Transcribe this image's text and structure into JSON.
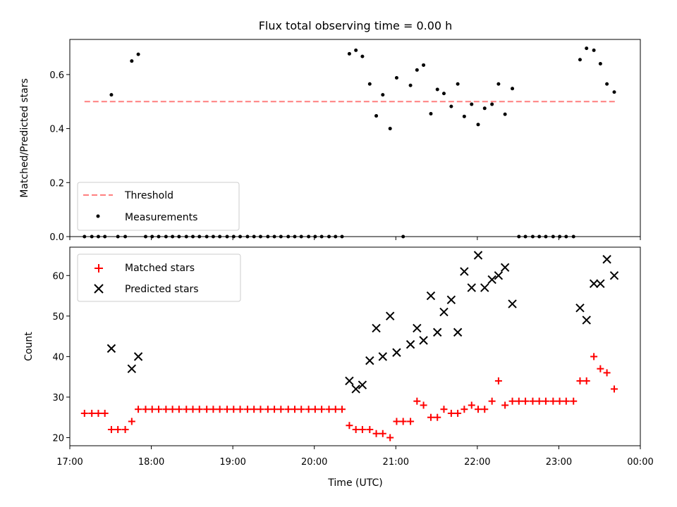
{
  "chart_data": [
    {
      "type": "scatter",
      "title": "Flux total observing time = 0.00 h",
      "xlabel": "",
      "ylabel": "Matched/Predicted stars",
      "xlim": [
        17.0,
        24.0
      ],
      "ylim": [
        0.0,
        0.73
      ],
      "yticks": [
        0.0,
        0.2,
        0.4,
        0.6
      ],
      "ytick_labels": [
        "0.0",
        "0.2",
        "0.4",
        "0.6"
      ],
      "legend": {
        "position": "lower-left",
        "entries": [
          "Threshold",
          "Measurements"
        ]
      },
      "threshold": {
        "name": "Threshold",
        "value": 0.5,
        "x_range": [
          17.18,
          23.7
        ],
        "color": "#ff7f7f"
      },
      "measurements": {
        "name": "Measurements",
        "color": "#000000",
        "x": [
          17.18,
          17.27,
          17.35,
          17.43,
          17.51,
          17.59,
          17.68,
          17.76,
          17.84,
          17.93,
          18.01,
          18.09,
          18.18,
          18.26,
          18.34,
          18.43,
          18.51,
          18.59,
          18.68,
          18.76,
          18.84,
          18.93,
          19.01,
          19.09,
          19.18,
          19.26,
          19.34,
          19.43,
          19.51,
          19.59,
          19.68,
          19.76,
          19.84,
          19.93,
          20.01,
          20.09,
          20.18,
          20.26,
          20.34,
          20.43,
          20.51,
          20.59,
          20.68,
          20.76,
          20.84,
          20.93,
          21.01,
          21.09,
          21.18,
          21.26,
          21.34,
          21.43,
          21.51,
          21.59,
          21.68,
          21.76,
          21.84,
          21.93,
          22.01,
          22.09,
          22.18,
          22.26,
          22.34,
          22.43,
          22.51,
          22.59,
          22.68,
          22.76,
          22.84,
          22.93,
          23.01,
          23.09,
          23.18,
          23.26,
          23.34,
          23.43,
          23.51,
          23.59,
          23.68
        ],
        "y": [
          0,
          0,
          0,
          0,
          0.525,
          0,
          0,
          0.65,
          0.675,
          0,
          0,
          0,
          0,
          0,
          0,
          0,
          0,
          0,
          0,
          0,
          0,
          0,
          0,
          0,
          0,
          0,
          0,
          0,
          0,
          0,
          0,
          0,
          0,
          0,
          0,
          0,
          0,
          0,
          0,
          0.677,
          0.69,
          0.667,
          0.565,
          0.447,
          0.525,
          0.4,
          0.588,
          0,
          0.56,
          0.617,
          0.635,
          0.455,
          0.545,
          0.53,
          0.482,
          0.565,
          0.445,
          0.49,
          0.415,
          0.475,
          0.49,
          0.565,
          0.453,
          0.548,
          0,
          0,
          0,
          0,
          0,
          0,
          0,
          0,
          0,
          0.655,
          0.697,
          0.69,
          0.64,
          0.565,
          0.535
        ]
      }
    },
    {
      "type": "scatter",
      "title": "",
      "xlabel": "Time (UTC)",
      "ylabel": "Count",
      "xlim": [
        17.0,
        24.0
      ],
      "ylim": [
        18.0,
        67.0
      ],
      "xticks": [
        17,
        18,
        19,
        20,
        21,
        22,
        23,
        24
      ],
      "xtick_labels": [
        "17:00",
        "18:00",
        "19:00",
        "20:00",
        "21:00",
        "22:00",
        "23:00",
        "00:00"
      ],
      "yticks": [
        20,
        30,
        40,
        50,
        60
      ],
      "ytick_labels": [
        "20",
        "30",
        "40",
        "50",
        "60"
      ],
      "legend": {
        "position": "top-left",
        "entries": [
          "Matched stars",
          "Predicted stars"
        ]
      },
      "matched": {
        "name": "Matched stars",
        "color": "#ff0000",
        "x": [
          17.18,
          17.27,
          17.35,
          17.43,
          17.51,
          17.59,
          17.68,
          17.76,
          17.84,
          17.93,
          18.01,
          18.09,
          18.18,
          18.26,
          18.34,
          18.43,
          18.51,
          18.59,
          18.68,
          18.76,
          18.84,
          18.93,
          19.01,
          19.09,
          19.18,
          19.26,
          19.34,
          19.43,
          19.51,
          19.59,
          19.68,
          19.76,
          19.84,
          19.93,
          20.01,
          20.09,
          20.18,
          20.26,
          20.34,
          20.43,
          20.51,
          20.59,
          20.68,
          20.76,
          20.84,
          20.93,
          21.01,
          21.09,
          21.18,
          21.26,
          21.34,
          21.43,
          21.51,
          21.59,
          21.68,
          21.76,
          21.84,
          21.93,
          22.01,
          22.09,
          22.18,
          22.26,
          22.34,
          22.43,
          22.51,
          22.59,
          22.68,
          22.76,
          22.84,
          22.93,
          23.01,
          23.09,
          23.18,
          23.26,
          23.34,
          23.43,
          23.51,
          23.59,
          23.68
        ],
        "y": [
          26,
          26,
          26,
          26,
          22,
          22,
          22,
          24,
          27,
          27,
          27,
          27,
          27,
          27,
          27,
          27,
          27,
          27,
          27,
          27,
          27,
          27,
          27,
          27,
          27,
          27,
          27,
          27,
          27,
          27,
          27,
          27,
          27,
          27,
          27,
          27,
          27,
          27,
          27,
          23,
          22,
          22,
          22,
          21,
          21,
          20,
          24,
          24,
          24,
          29,
          28,
          25,
          25,
          27,
          26,
          26,
          27,
          28,
          27,
          27,
          29,
          34,
          28,
          29,
          29,
          29,
          29,
          29,
          29,
          29,
          29,
          29,
          29,
          34,
          34,
          40,
          37,
          36,
          32
        ]
      },
      "predicted": {
        "name": "Predicted stars",
        "color": "#000000",
        "x": [
          17.51,
          17.76,
          17.84,
          20.43,
          20.51,
          20.59,
          20.68,
          20.76,
          20.84,
          20.93,
          21.01,
          21.18,
          21.26,
          21.34,
          21.43,
          21.51,
          21.59,
          21.68,
          21.76,
          21.84,
          21.93,
          22.01,
          22.09,
          22.18,
          22.26,
          22.34,
          22.43,
          23.26,
          23.34,
          23.43,
          23.51,
          23.59,
          23.68
        ],
        "y": [
          42,
          37,
          40,
          34,
          32,
          33,
          39,
          47,
          40,
          50,
          41,
          43,
          47,
          44,
          55,
          46,
          51,
          54,
          46,
          61,
          57,
          65,
          57,
          59,
          60,
          62,
          53,
          52,
          49,
          58,
          58,
          64,
          60
        ]
      }
    }
  ]
}
